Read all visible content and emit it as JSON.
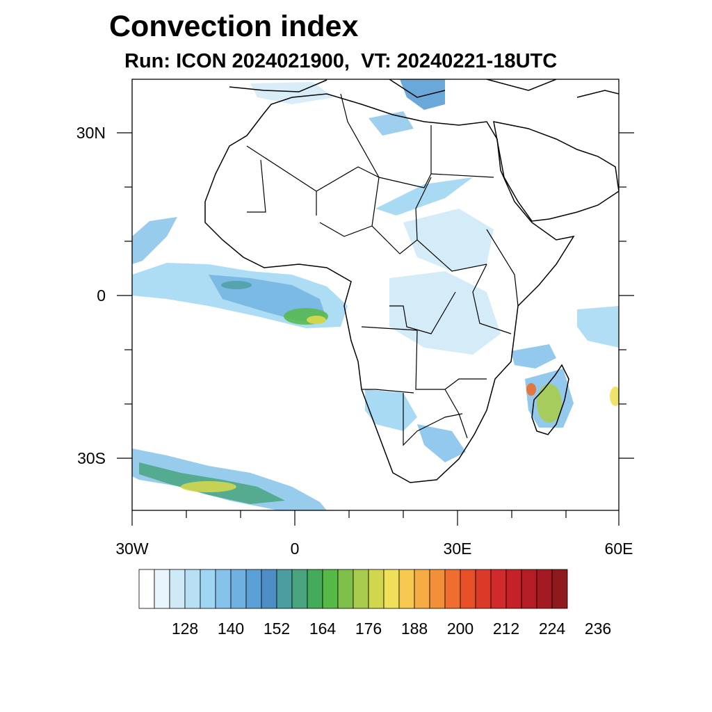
{
  "title": "Convection index",
  "subtitle": "Run: ICON 2024021900,  VT: 20240221-18UTC",
  "map": {
    "lat_range": [
      -40,
      40
    ],
    "lon_range": [
      -30,
      60
    ],
    "lat_labels": [
      "30N",
      "0",
      "30S"
    ],
    "lon_labels": [
      "30W",
      "0",
      "30E",
      "60E"
    ]
  },
  "colorbar": {
    "colors": [
      "#ffffff",
      "#e8f5fc",
      "#cfe9f7",
      "#b7e0f5",
      "#9fd6f3",
      "#86c3ea",
      "#6fb2e2",
      "#5a9fd5",
      "#4d8fc4",
      "#4a9e9f",
      "#48a57f",
      "#43ab5a",
      "#56b946",
      "#7fc04a",
      "#a8cc4e",
      "#d0d74f",
      "#efe05a",
      "#f7c951",
      "#f6ab45",
      "#f48f39",
      "#ef6d2e",
      "#e65028",
      "#dc3a28",
      "#d22a2a",
      "#c42128",
      "#b51c25",
      "#a41a22",
      "#8e1a1e"
    ],
    "labels": [
      "128",
      "140",
      "152",
      "164",
      "176",
      "188",
      "200",
      "212",
      "224",
      "236"
    ]
  }
}
